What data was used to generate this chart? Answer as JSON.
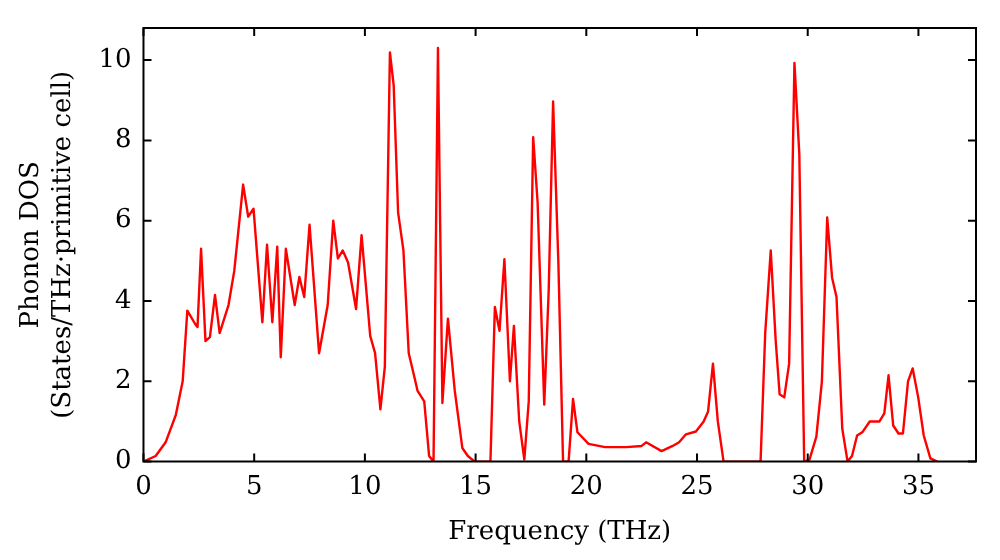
{
  "chart_data": {
    "type": "line",
    "xlabel": "Frequency (THz)",
    "ylabel": "Phonon DOS\n(States/THz·primitive cell)",
    "x": [
      0,
      0.55,
      1.0,
      1.46,
      1.77,
      1.98,
      2.32,
      2.44,
      2.6,
      2.8,
      3.0,
      3.23,
      3.44,
      3.84,
      4.1,
      4.5,
      4.73,
      4.97,
      5.37,
      5.58,
      5.82,
      6.04,
      6.2,
      6.43,
      6.83,
      7.04,
      7.26,
      7.5,
      7.93,
      8.32,
      8.57,
      8.78,
      9.0,
      9.24,
      9.6,
      9.85,
      10.24,
      10.46,
      10.7,
      10.9,
      11.13,
      11.3,
      11.5,
      11.74,
      11.98,
      12.2,
      12.38,
      12.68,
      12.9,
      13.1,
      13.3,
      13.5,
      13.75,
      14.06,
      14.4,
      14.65,
      14.96,
      15.67,
      15.87,
      16.08,
      16.3,
      16.55,
      16.73,
      16.97,
      17.2,
      17.4,
      17.6,
      17.8,
      18.1,
      18.3,
      18.5,
      18.74,
      18.95,
      19.2,
      19.4,
      19.6,
      20.1,
      20.85,
      21.8,
      22.5,
      22.7,
      23.4,
      23.9,
      24.19,
      24.5,
      24.95,
      25.3,
      25.5,
      25.72,
      25.94,
      26.2,
      27.87,
      28.08,
      28.33,
      28.55,
      28.73,
      28.94,
      29.16,
      29.4,
      29.62,
      29.84,
      30.08,
      30.39,
      30.64,
      30.88,
      31.1,
      31.3,
      31.56,
      31.8,
      32.0,
      32.23,
      32.48,
      32.8,
      33.24,
      33.46,
      33.65,
      33.86,
      34.1,
      34.3,
      34.53,
      34.74,
      34.99,
      35.24,
      35.54,
      35.85
    ],
    "series": [
      {
        "color": "#ff0000",
        "values": [
          0,
          0.14,
          0.48,
          1.16,
          2.0,
          3.76,
          3.44,
          3.35,
          5.3,
          3.0,
          3.1,
          4.15,
          3.2,
          3.9,
          4.75,
          6.9,
          6.1,
          6.3,
          3.47,
          5.4,
          3.47,
          5.35,
          2.6,
          5.3,
          3.9,
          4.6,
          4.1,
          5.9,
          2.7,
          3.9,
          6.0,
          5.06,
          5.26,
          4.96,
          3.8,
          5.64,
          3.13,
          2.7,
          1.3,
          2.36,
          10.19,
          9.37,
          6.2,
          5.26,
          2.7,
          2.19,
          1.76,
          1.5,
          0.14,
          0,
          10.3,
          1.46,
          3.56,
          1.76,
          0.34,
          0.14,
          0,
          0,
          3.85,
          3.26,
          5.04,
          2.0,
          3.38,
          1.0,
          0.05,
          1.5,
          8.08,
          6.46,
          1.42,
          4.24,
          8.97,
          4.92,
          0,
          0,
          1.56,
          0.73,
          0.44,
          0.36,
          0.36,
          0.39,
          0.48,
          0.26,
          0.39,
          0.48,
          0.68,
          0.75,
          1.0,
          1.25,
          2.44,
          1.0,
          0,
          0,
          3.2,
          5.26,
          3.04,
          1.68,
          1.6,
          2.44,
          9.93,
          7.66,
          0,
          0.05,
          0.62,
          2.0,
          6.08,
          4.58,
          4.1,
          0.82,
          0,
          0.14,
          0.65,
          0.74,
          1.0,
          1.0,
          1.2,
          2.15,
          0.9,
          0.7,
          0.7,
          2.0,
          2.32,
          1.6,
          0.65,
          0.08,
          0
        ]
      }
    ],
    "xlim": [
      0,
      37.6
    ],
    "xticks": [
      0,
      5,
      10,
      15,
      20,
      25,
      30,
      35
    ],
    "ylim": [
      0,
      10.8
    ],
    "yticks": [
      0,
      2,
      4,
      6,
      8,
      10
    ],
    "grid": false,
    "legend": false,
    "marker": "none",
    "line_style": "solid"
  }
}
